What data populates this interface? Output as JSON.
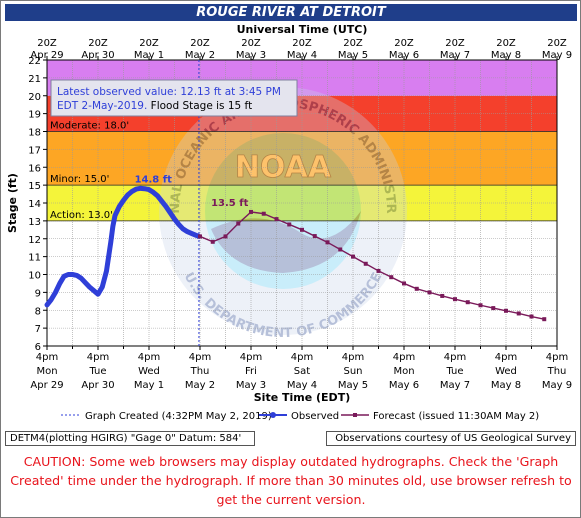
{
  "title": "ROUGE RIVER AT DETROIT",
  "chart_data": {
    "type": "line",
    "top_axis_title": "Universal Time (UTC)",
    "xlabel": "Site Time (EDT)",
    "ylabel": "Stage (ft)",
    "ylim": [
      6,
      22
    ],
    "xlim": [
      0,
      240
    ],
    "x_unit": "hours since 4pm Mon Apr 29, 2019 EDT",
    "y_ticks": [
      6,
      7,
      8,
      9,
      10,
      11,
      12,
      13,
      14,
      15,
      16,
      17,
      18,
      19,
      20,
      21,
      22
    ],
    "bottom_ticks": [
      {
        "x": 0,
        "line1": "4pm",
        "line2": "Mon",
        "line3": "Apr 29"
      },
      {
        "x": 12,
        "line1": "4pm",
        "line2": "Tue",
        "line3": "Apr 30"
      },
      {
        "x": 24,
        "line1": "4pm",
        "line2": "Wed",
        "line3": "May 1"
      },
      {
        "x": 36,
        "line1": "4pm",
        "line2": "Thu",
        "line3": "May 2"
      },
      {
        "x": 48,
        "line1": "4pm",
        "line2": "Fri",
        "line3": "May 3"
      },
      {
        "x": 60,
        "line1": "4pm",
        "line2": "Sat",
        "line3": "May 4"
      },
      {
        "x": 72,
        "line1": "4pm",
        "line2": "Sun",
        "line3": "May 5"
      },
      {
        "x": 84,
        "line1": "4pm",
        "line2": "Mon",
        "line3": "May 6"
      },
      {
        "x": 96,
        "line1": "4pm",
        "line2": "Tue",
        "line3": "May 7"
      },
      {
        "x": 108,
        "line1": "4pm",
        "line2": "Wed",
        "line3": "May 8"
      },
      {
        "x": 120,
        "line1": "4pm",
        "line2": "Thu",
        "line3": "May 9"
      }
    ],
    "top_ticks": [
      {
        "x": 0,
        "line1": "20Z",
        "line2": "Apr 29"
      },
      {
        "x": 12,
        "line1": "20Z",
        "line2": "Apr 30"
      },
      {
        "x": 24,
        "line1": "20Z",
        "line2": "May 1"
      },
      {
        "x": 36,
        "line1": "20Z",
        "line2": "May 2"
      },
      {
        "x": 48,
        "line1": "20Z",
        "line2": "May 3"
      },
      {
        "x": 60,
        "line1": "20Z",
        "line2": "May 4"
      },
      {
        "x": 72,
        "line1": "20Z",
        "line2": "May 5"
      },
      {
        "x": 84,
        "line1": "20Z",
        "line2": "May 6"
      },
      {
        "x": 96,
        "line1": "20Z",
        "line2": "May 7"
      },
      {
        "x": 108,
        "line1": "20Z",
        "line2": "May 8"
      },
      {
        "x": 120,
        "line1": "20Z",
        "line2": "May 9"
      }
    ],
    "flood_bands": [
      {
        "name": "Action",
        "label": "Action: 13.0'",
        "from": 13,
        "to": 15,
        "color": "#f4f43a"
      },
      {
        "name": "Minor",
        "label": "Minor: 15.0'",
        "from": 15,
        "to": 18,
        "color": "#fda624"
      },
      {
        "name": "Moderate",
        "label": "Moderate: 18.0'",
        "from": 18,
        "to": 20,
        "color": "#f4402c"
      },
      {
        "name": "Major",
        "label": "",
        "from": 20,
        "to": 22,
        "color": "#d87ef0"
      }
    ],
    "annotations": [
      {
        "text": "14.8 ft",
        "x": 25,
        "y": 14.8,
        "color": "#2f3fd8"
      },
      {
        "text": "13.5 ft",
        "x": 43,
        "y": 13.5,
        "color": "#7a1a5a"
      }
    ],
    "info_box": {
      "line1": "Latest observed value: 12.13 ft at 3:45 PM",
      "line2_blue": "EDT 2-May-2019.",
      "line2_black": " Flood Stage is 15 ft"
    },
    "graph_created_x": 35.75,
    "series": [
      {
        "name": "Observed",
        "color": "#2f3fd8",
        "x": [
          0,
          1,
          2,
          3,
          4,
          5,
          6,
          7,
          8,
          9,
          10,
          11,
          12,
          13,
          14,
          15,
          15.5,
          16,
          17,
          18,
          19,
          20,
          21,
          22,
          23,
          24,
          25,
          26,
          27,
          28,
          29,
          30,
          31,
          32,
          33,
          34,
          35,
          35.75
        ],
        "y": [
          8.3,
          8.6,
          9.0,
          9.5,
          9.9,
          10.0,
          10.0,
          9.95,
          9.8,
          9.55,
          9.3,
          9.1,
          8.9,
          9.3,
          10.2,
          11.8,
          12.7,
          13.3,
          13.8,
          14.15,
          14.45,
          14.65,
          14.78,
          14.82,
          14.8,
          14.75,
          14.6,
          14.4,
          14.1,
          13.8,
          13.45,
          13.1,
          12.8,
          12.55,
          12.4,
          12.3,
          12.2,
          12.13
        ]
      },
      {
        "name": "Forecast (issued 11:30AM May 2)",
        "color": "#7a1a5a",
        "x": [
          36,
          39,
          42,
          45,
          48,
          51,
          54,
          57,
          60,
          63,
          66,
          69,
          72,
          75,
          78,
          81,
          84,
          87,
          90,
          93,
          96,
          99,
          102,
          105,
          108,
          111,
          114,
          117
        ],
        "y": [
          12.13,
          11.83,
          12.13,
          12.85,
          13.5,
          13.4,
          13.1,
          12.8,
          12.5,
          12.15,
          11.8,
          11.4,
          11.0,
          10.6,
          10.2,
          9.85,
          9.5,
          9.2,
          9.0,
          8.8,
          8.62,
          8.45,
          8.28,
          8.12,
          7.97,
          7.82,
          7.65,
          7.5
        ]
      }
    ],
    "legend": {
      "created_label": "Graph Created (4:32PM May 2, 2019)",
      "observed_label": "Observed",
      "forecast_label": "Forecast (issued 11:30AM May 2)"
    },
    "watermark": {
      "logo_text": "NOAA",
      "ring_text_top": "NATIONAL OCEANIC AND ATMOSPHERIC ADMINISTRATION",
      "ring_text_bottom": "U.S. DEPARTMENT OF COMMERCE"
    }
  },
  "footer": {
    "station_info": "DETM4(plotting HGIRG) \"Gage 0\" Datum: 584'",
    "credit": "Observations courtesy of US Geological Survey",
    "caution": "CAUTION: Some web browsers may display outdated hydrographs. Check the 'Graph Created' time under the hydrograph. If more than 30 minutes old, use browser refresh to get the current version."
  }
}
